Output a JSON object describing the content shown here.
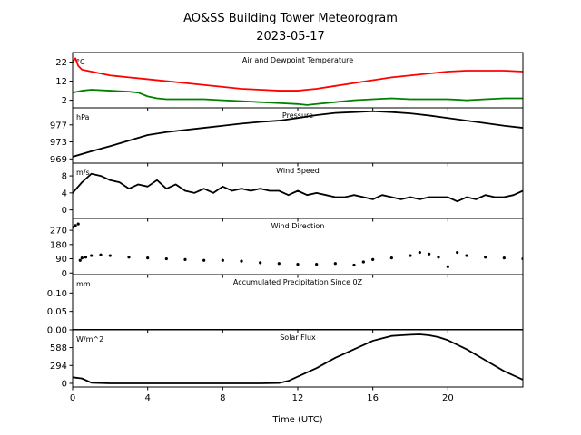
{
  "figure": {
    "title": "AO&SS Building Tower Meteorogram",
    "subtitle": "2023-05-17",
    "xlabel": "Time (UTC)"
  },
  "chart_data": [
    {
      "type": "line",
      "title": "Air and Dewpoint Temperature",
      "unit": "°C",
      "xlim": [
        0,
        24
      ],
      "ylim": [
        -2,
        27
      ],
      "y_ticks": [
        2,
        12,
        22
      ],
      "series": [
        {
          "color": "#ff0000",
          "x": [
            0,
            0.15,
            0.3,
            0.5,
            1,
            1.5,
            2,
            3,
            4,
            5,
            6,
            7,
            8,
            9,
            10,
            11,
            11.5,
            12,
            12.5,
            13,
            14,
            15,
            16,
            17,
            18,
            19,
            20,
            21,
            22,
            23,
            24
          ],
          "y": [
            22,
            24,
            20,
            18,
            17,
            16,
            15,
            14,
            13,
            12,
            11,
            10,
            9,
            8,
            7.5,
            7,
            7,
            7,
            7.5,
            8,
            9.5,
            11,
            12.5,
            14,
            15,
            16,
            17,
            17.5,
            17.5,
            17.5,
            17
          ]
        },
        {
          "color": "#008000",
          "x": [
            0,
            0.5,
            1,
            2,
            3,
            3.5,
            4,
            4.5,
            5,
            6,
            7,
            8,
            9,
            10,
            11,
            12,
            12.5,
            13,
            14,
            15,
            16,
            17,
            18,
            19,
            20,
            21,
            22,
            23,
            24
          ],
          "y": [
            6,
            7,
            7.5,
            7,
            6.5,
            6,
            4,
            3,
            2.5,
            2.5,
            2.5,
            2,
            1.5,
            1,
            0.5,
            0,
            -0.5,
            0,
            1,
            2,
            2.5,
            3,
            2.5,
            2.5,
            2.5,
            2,
            2.5,
            3,
            3
          ]
        }
      ]
    },
    {
      "type": "line",
      "title": "Pressure",
      "unit": "hPa",
      "xlim": [
        0,
        24
      ],
      "ylim": [
        968,
        981
      ],
      "y_ticks": [
        969,
        973,
        977
      ],
      "series": [
        {
          "color": "#000000",
          "x": [
            0,
            1,
            2,
            3,
            4,
            5,
            6,
            7,
            8,
            9,
            10,
            11,
            12,
            13,
            14,
            15,
            16,
            17,
            18,
            19,
            20,
            21,
            22,
            23,
            24
          ],
          "y": [
            969.5,
            970.8,
            972.0,
            973.3,
            974.6,
            975.3,
            975.8,
            976.3,
            976.8,
            977.3,
            977.7,
            978.0,
            978.6,
            979.3,
            979.8,
            980.0,
            980.2,
            980.0,
            979.7,
            979.2,
            978.6,
            978.0,
            977.4,
            976.8,
            976.3
          ]
        }
      ]
    },
    {
      "type": "line",
      "title": "Wind Speed",
      "unit": "m/s",
      "xlim": [
        0,
        24
      ],
      "ylim": [
        -2,
        11
      ],
      "y_ticks": [
        0,
        4,
        8
      ],
      "series": [
        {
          "color": "#000000",
          "x": [
            0,
            0.5,
            1,
            1.5,
            2,
            2.5,
            3,
            3.5,
            4,
            4.5,
            5,
            5.5,
            6,
            6.5,
            7,
            7.5,
            8,
            8.5,
            9,
            9.5,
            10,
            10.5,
            11,
            11.5,
            12,
            12.5,
            13,
            13.5,
            14,
            14.5,
            15,
            15.5,
            16,
            16.5,
            17,
            17.5,
            18,
            18.5,
            19,
            19.5,
            20,
            20.5,
            21,
            21.5,
            22,
            22.5,
            23,
            23.5,
            24
          ],
          "y": [
            4,
            6.5,
            8.5,
            8,
            7,
            6.5,
            5,
            6,
            5.5,
            7,
            5,
            6,
            4.5,
            4,
            5,
            4,
            5.5,
            4.5,
            5,
            4.5,
            5,
            4.5,
            4.5,
            3.5,
            4.5,
            3.5,
            4,
            3.5,
            3,
            3,
            3.5,
            3,
            2.5,
            3.5,
            3,
            2.5,
            3,
            2.5,
            3,
            3,
            3,
            2,
            3,
            2.5,
            3.5,
            3,
            3,
            3.5,
            4.5
          ]
        }
      ]
    },
    {
      "type": "scatter",
      "title": "Wind Direction",
      "unit": "",
      "xlim": [
        0,
        24
      ],
      "ylim": [
        -10,
        345
      ],
      "y_ticks": [
        0,
        90,
        180,
        270
      ],
      "series": [
        {
          "color": "#000000",
          "x": [
            0,
            0.15,
            0.3,
            0.4,
            0.5,
            0.7,
            1,
            1.5,
            2,
            3,
            4,
            5,
            6,
            7,
            8,
            9,
            10,
            11,
            12,
            13,
            14,
            15,
            15.5,
            16,
            17,
            18,
            18.5,
            19,
            19.5,
            20,
            20.5,
            21,
            22,
            23,
            24
          ],
          "y": [
            290,
            300,
            310,
            80,
            95,
            100,
            110,
            115,
            110,
            100,
            95,
            90,
            85,
            80,
            80,
            75,
            65,
            60,
            55,
            55,
            60,
            50,
            70,
            85,
            95,
            110,
            130,
            120,
            100,
            40,
            130,
            110,
            100,
            95,
            90
          ]
        }
      ]
    },
    {
      "type": "line",
      "title": "Accumulated Precipitation Since 0Z",
      "unit": "mm",
      "xlim": [
        0,
        24
      ],
      "ylim": [
        0,
        0.15
      ],
      "y_ticks": [
        0.0,
        0.05,
        0.1
      ],
      "y_tick_labels": [
        "0.00",
        "0.05",
        "0.10"
      ],
      "series": [
        {
          "color": "#000000",
          "x": [
            0,
            24
          ],
          "y": [
            0,
            0
          ]
        }
      ]
    },
    {
      "type": "line",
      "title": "Solar Flux",
      "unit": "W/m^2",
      "xlim": [
        0,
        24
      ],
      "ylim": [
        -60,
        880
      ],
      "y_ticks": [
        0,
        294,
        588
      ],
      "series": [
        {
          "color": "#000000",
          "x": [
            0,
            0.5,
            1,
            2,
            4,
            6,
            8,
            10,
            11,
            11.5,
            12,
            13,
            14,
            15,
            16,
            16.5,
            17,
            17.5,
            18,
            18.5,
            19,
            19.5,
            20,
            21,
            22,
            23,
            24
          ],
          "y": [
            100,
            80,
            10,
            0,
            0,
            0,
            0,
            0,
            5,
            40,
            110,
            250,
            420,
            560,
            700,
            740,
            780,
            790,
            800,
            805,
            790,
            760,
            710,
            560,
            380,
            200,
            60
          ]
        }
      ]
    }
  ],
  "x_axis": {
    "xlim": [
      0,
      24
    ],
    "ticks": [
      0,
      4,
      8,
      12,
      16,
      20
    ]
  }
}
